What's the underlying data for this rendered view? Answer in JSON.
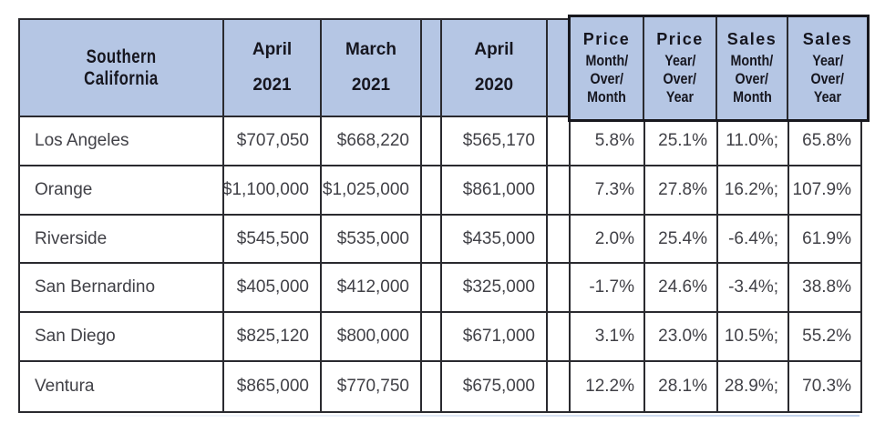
{
  "colors": {
    "header_bg": "#b5c6e4",
    "grid_border": "#2a2a2f",
    "group_border": "#17171d",
    "header_text": "#16161f",
    "body_text": "#414147"
  },
  "table": {
    "columns": [
      {
        "key": "region",
        "lines": [
          "Southern",
          "California"
        ]
      },
      {
        "key": "apr2021",
        "lines": [
          "April",
          "2021"
        ]
      },
      {
        "key": "mar2021",
        "lines": [
          "March",
          "2021"
        ]
      },
      {
        "key": "spacer1",
        "lines": []
      },
      {
        "key": "apr2020",
        "lines": [
          "April",
          "2020"
        ]
      },
      {
        "key": "spacer2",
        "lines": []
      },
      {
        "key": "price_mom",
        "lines": [
          "Price",
          "Month/",
          "Over/",
          "Month"
        ]
      },
      {
        "key": "price_yoy",
        "lines": [
          "Price",
          "Year/",
          "Over/",
          "Year"
        ]
      },
      {
        "key": "sales_mom",
        "lines": [
          "Sales",
          "Month/",
          "Over/",
          "Month"
        ]
      },
      {
        "key": "sales_yoy",
        "lines": [
          "Sales",
          "Year/",
          "Over/",
          "Year"
        ]
      }
    ],
    "rows": [
      {
        "cells": [
          "Los Angeles",
          "$707,050",
          "$668,220",
          "",
          "$565,170",
          "",
          "5.8%",
          "25.1%",
          "11.0%;",
          "65.8%"
        ]
      },
      {
        "cells": [
          "Orange",
          "$1,100,000",
          "$1,025,000",
          "",
          "$861,000",
          "",
          "7.3%",
          "27.8%",
          "16.2%;",
          "107.9%"
        ]
      },
      {
        "cells": [
          "Riverside",
          "$545,500",
          "$535,000",
          "",
          "$435,000",
          "",
          "2.0%",
          "25.4%",
          "-6.4%;",
          "61.9%"
        ]
      },
      {
        "cells": [
          "San Bernardino",
          "$405,000",
          "$412,000",
          "",
          "$325,000",
          "",
          "-1.7%",
          "24.6%",
          "-3.4%;",
          "38.8%"
        ]
      },
      {
        "cells": [
          "San Diego",
          "$825,120",
          "$800,000",
          "",
          "$671,000",
          "",
          "3.1%",
          "23.0%",
          "10.5%;",
          "55.2%"
        ]
      },
      {
        "cells": [
          "Ventura",
          "$865,000",
          "$770,750",
          "",
          "$675,000",
          "",
          "12.2%",
          "28.1%",
          "28.9%;",
          "70.3%"
        ]
      }
    ]
  },
  "chart_data": {
    "type": "table",
    "title": "Southern California",
    "columns": [
      "Southern California",
      "April 2021",
      "March 2021",
      "April 2020",
      "Price Month/Over/Month",
      "Price Year/Over/Year",
      "Sales Month/Over/Month",
      "Sales Year/Over/Year"
    ],
    "rows": [
      [
        "Los Angeles",
        "$707,050",
        "$668,220",
        "$565,170",
        "5.8%",
        "25.1%",
        "11.0%",
        "65.8%"
      ],
      [
        "Orange",
        "$1,100,000",
        "$1,025,000",
        "$861,000",
        "7.3%",
        "27.8%",
        "16.2%",
        "107.9%"
      ],
      [
        "Riverside",
        "$545,500",
        "$535,000",
        "$435,000",
        "2.0%",
        "25.4%",
        "-6.4%",
        "61.9%"
      ],
      [
        "San Bernardino",
        "$405,000",
        "$412,000",
        "$325,000",
        "-1.7%",
        "24.6%",
        "-3.4%",
        "38.8%"
      ],
      [
        "San Diego",
        "$825,120",
        "$800,000",
        "$671,000",
        "3.1%",
        "23.0%",
        "10.5%",
        "55.2%"
      ],
      [
        "Ventura",
        "$865,000",
        "$770,750",
        "$675,000",
        "12.2%",
        "28.1%",
        "28.9%",
        "70.3%"
      ]
    ]
  }
}
